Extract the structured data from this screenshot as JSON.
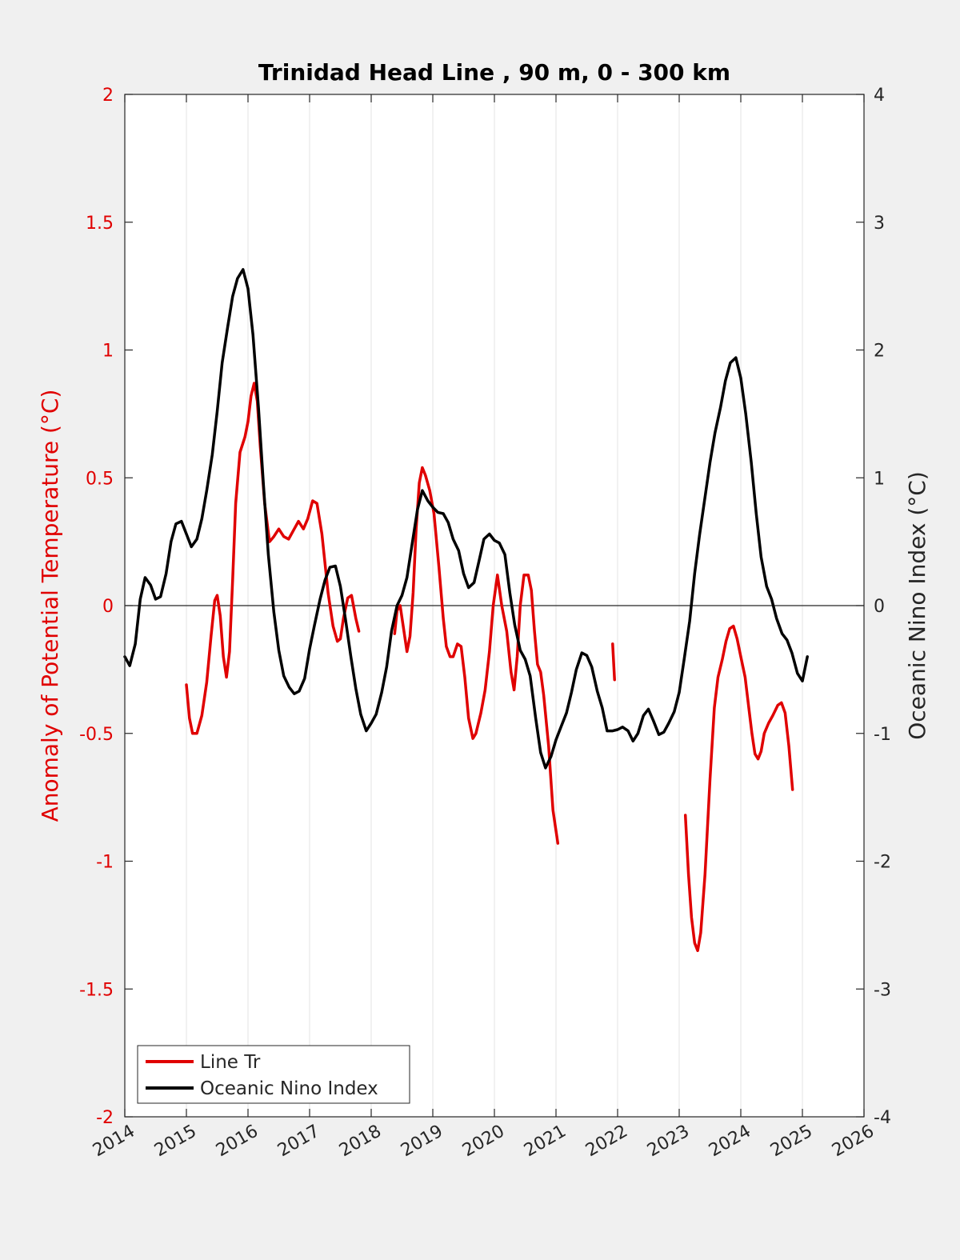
{
  "chart_data": {
    "type": "line",
    "title": "Trinidad Head Line , 90 m, 0 - 300 km",
    "ylabel_left": "Anomaly of Potential Temperature (°C)",
    "ylabel_right": "Oceanic Nino Index (°C)",
    "xlabel": "",
    "xlim": [
      2014,
      2026
    ],
    "ylim_left": [
      -2,
      2
    ],
    "ylim_right": [
      -4,
      4
    ],
    "x_ticks": [
      "2014",
      "2015",
      "2016",
      "2017",
      "2018",
      "2019",
      "2020",
      "2021",
      "2022",
      "2023",
      "2024",
      "2025",
      "2026"
    ],
    "y_left_ticks": [
      "2",
      "1.5",
      "1",
      "0.5",
      "0",
      "-0.5",
      "-1",
      "-1.5",
      "-2"
    ],
    "y_right_ticks": [
      "4",
      "3",
      "2",
      "1",
      "0",
      "-1",
      "-2",
      "-3",
      "-4"
    ],
    "grid": "vertical",
    "zero_line": true,
    "legend_position": "bottom-left",
    "colors": {
      "left_axis": "#e00000",
      "line_tr": "#e00000",
      "oni": "#000000"
    },
    "series": [
      {
        "name": "Line Tr",
        "axis": "left",
        "color": "#e00000",
        "segments": [
          [
            [
              2015.0,
              -0.31
            ],
            [
              2015.05,
              -0.44
            ],
            [
              2015.1,
              -0.5
            ],
            [
              2015.17,
              -0.5
            ],
            [
              2015.25,
              -0.43
            ],
            [
              2015.33,
              -0.3
            ],
            [
              2015.4,
              -0.12
            ],
            [
              2015.46,
              0.02
            ],
            [
              2015.5,
              0.04
            ],
            [
              2015.55,
              -0.04
            ],
            [
              2015.6,
              -0.2
            ],
            [
              2015.65,
              -0.28
            ],
            [
              2015.7,
              -0.18
            ],
            [
              2015.75,
              0.1
            ],
            [
              2015.8,
              0.4
            ],
            [
              2015.87,
              0.6
            ],
            [
              2015.95,
              0.66
            ],
            [
              2016.0,
              0.72
            ],
            [
              2016.05,
              0.82
            ],
            [
              2016.1,
              0.87
            ],
            [
              2016.15,
              0.8
            ],
            [
              2016.2,
              0.62
            ],
            [
              2016.27,
              0.4
            ],
            [
              2016.35,
              0.25
            ],
            [
              2016.42,
              0.27
            ],
            [
              2016.5,
              0.3
            ],
            [
              2016.58,
              0.27
            ],
            [
              2016.66,
              0.26
            ],
            [
              2016.75,
              0.3
            ],
            [
              2016.82,
              0.33
            ],
            [
              2016.9,
              0.3
            ],
            [
              2016.97,
              0.34
            ],
            [
              2017.05,
              0.41
            ],
            [
              2017.12,
              0.4
            ],
            [
              2017.2,
              0.28
            ],
            [
              2017.3,
              0.05
            ],
            [
              2017.38,
              -0.08
            ],
            [
              2017.45,
              -0.14
            ],
            [
              2017.5,
              -0.13
            ],
            [
              2017.55,
              -0.05
            ],
            [
              2017.62,
              0.03
            ],
            [
              2017.68,
              0.04
            ],
            [
              2017.75,
              -0.05
            ],
            [
              2017.8,
              -0.1
            ]
          ],
          [
            [
              2018.38,
              -0.11
            ],
            [
              2018.42,
              -0.02
            ],
            [
              2018.47,
              0.0
            ],
            [
              2018.52,
              -0.08
            ],
            [
              2018.58,
              -0.18
            ],
            [
              2018.63,
              -0.12
            ],
            [
              2018.68,
              0.05
            ],
            [
              2018.73,
              0.3
            ],
            [
              2018.78,
              0.48
            ],
            [
              2018.83,
              0.54
            ],
            [
              2018.88,
              0.51
            ],
            [
              2018.95,
              0.45
            ],
            [
              2019.02,
              0.36
            ],
            [
              2019.1,
              0.15
            ],
            [
              2019.17,
              -0.05
            ],
            [
              2019.22,
              -0.16
            ],
            [
              2019.28,
              -0.2
            ],
            [
              2019.33,
              -0.2
            ],
            [
              2019.4,
              -0.15
            ],
            [
              2019.46,
              -0.16
            ],
            [
              2019.52,
              -0.28
            ],
            [
              2019.58,
              -0.44
            ],
            [
              2019.65,
              -0.52
            ],
            [
              2019.7,
              -0.5
            ],
            [
              2019.78,
              -0.42
            ],
            [
              2019.85,
              -0.33
            ],
            [
              2019.92,
              -0.18
            ],
            [
              2019.98,
              0.0
            ],
            [
              2020.05,
              0.12
            ],
            [
              2020.12,
              0.0
            ],
            [
              2020.2,
              -0.1
            ],
            [
              2020.27,
              -0.26
            ],
            [
              2020.32,
              -0.33
            ],
            [
              2020.37,
              -0.2
            ],
            [
              2020.42,
              0.0
            ],
            [
              2020.48,
              0.12
            ],
            [
              2020.55,
              0.12
            ],
            [
              2020.6,
              0.06
            ],
            [
              2020.65,
              -0.1
            ],
            [
              2020.7,
              -0.23
            ],
            [
              2020.75,
              -0.26
            ],
            [
              2020.8,
              -0.35
            ],
            [
              2020.88,
              -0.55
            ],
            [
              2020.95,
              -0.8
            ],
            [
              2021.03,
              -0.93
            ]
          ],
          [
            [
              2021.92,
              -0.15
            ],
            [
              2021.95,
              -0.29
            ]
          ],
          [
            [
              2023.1,
              -0.82
            ],
            [
              2023.15,
              -1.05
            ],
            [
              2023.2,
              -1.22
            ],
            [
              2023.25,
              -1.32
            ],
            [
              2023.3,
              -1.35
            ],
            [
              2023.35,
              -1.28
            ],
            [
              2023.42,
              -1.05
            ],
            [
              2023.5,
              -0.68
            ],
            [
              2023.57,
              -0.4
            ],
            [
              2023.63,
              -0.28
            ],
            [
              2023.7,
              -0.21
            ],
            [
              2023.76,
              -0.14
            ],
            [
              2023.82,
              -0.09
            ],
            [
              2023.88,
              -0.08
            ],
            [
              2023.94,
              -0.13
            ],
            [
              2024.0,
              -0.2
            ],
            [
              2024.07,
              -0.28
            ],
            [
              2024.13,
              -0.4
            ],
            [
              2024.18,
              -0.5
            ],
            [
              2024.23,
              -0.58
            ],
            [
              2024.28,
              -0.6
            ],
            [
              2024.33,
              -0.57
            ],
            [
              2024.38,
              -0.5
            ],
            [
              2024.45,
              -0.46
            ],
            [
              2024.52,
              -0.43
            ],
            [
              2024.6,
              -0.39
            ],
            [
              2024.66,
              -0.38
            ],
            [
              2024.72,
              -0.42
            ],
            [
              2024.78,
              -0.55
            ],
            [
              2024.84,
              -0.72
            ]
          ]
        ]
      },
      {
        "name": "Oceanic Nino Index",
        "axis": "right",
        "color": "#000000",
        "segments": [
          [
            [
              2014.0,
              -0.4
            ],
            [
              2014.08,
              -0.47
            ],
            [
              2014.17,
              -0.3
            ],
            [
              2014.25,
              0.05
            ],
            [
              2014.33,
              0.22
            ],
            [
              2014.42,
              0.16
            ],
            [
              2014.5,
              0.05
            ],
            [
              2014.58,
              0.07
            ],
            [
              2014.67,
              0.25
            ],
            [
              2014.75,
              0.5
            ],
            [
              2014.83,
              0.64
            ],
            [
              2014.92,
              0.66
            ],
            [
              2015.0,
              0.56
            ],
            [
              2015.08,
              0.46
            ],
            [
              2015.17,
              0.52
            ],
            [
              2015.25,
              0.68
            ],
            [
              2015.33,
              0.9
            ],
            [
              2015.42,
              1.18
            ],
            [
              2015.5,
              1.52
            ],
            [
              2015.58,
              1.9
            ],
            [
              2015.67,
              2.18
            ],
            [
              2015.75,
              2.42
            ],
            [
              2015.83,
              2.56
            ],
            [
              2015.92,
              2.63
            ],
            [
              2016.0,
              2.48
            ],
            [
              2016.08,
              2.12
            ],
            [
              2016.17,
              1.55
            ],
            [
              2016.25,
              0.95
            ],
            [
              2016.33,
              0.4
            ],
            [
              2016.42,
              -0.05
            ],
            [
              2016.5,
              -0.35
            ],
            [
              2016.58,
              -0.55
            ],
            [
              2016.67,
              -0.64
            ],
            [
              2016.75,
              -0.69
            ],
            [
              2016.83,
              -0.67
            ],
            [
              2016.92,
              -0.57
            ],
            [
              2017.0,
              -0.34
            ],
            [
              2017.08,
              -0.15
            ],
            [
              2017.17,
              0.05
            ],
            [
              2017.25,
              0.2
            ],
            [
              2017.33,
              0.3
            ],
            [
              2017.42,
              0.31
            ],
            [
              2017.5,
              0.15
            ],
            [
              2017.58,
              -0.1
            ],
            [
              2017.67,
              -0.4
            ],
            [
              2017.75,
              -0.65
            ],
            [
              2017.83,
              -0.85
            ],
            [
              2017.92,
              -0.98
            ],
            [
              2018.0,
              -0.92
            ],
            [
              2018.08,
              -0.85
            ],
            [
              2018.17,
              -0.68
            ],
            [
              2018.25,
              -0.48
            ],
            [
              2018.33,
              -0.2
            ],
            [
              2018.42,
              0.0
            ],
            [
              2018.5,
              0.08
            ],
            [
              2018.58,
              0.22
            ],
            [
              2018.67,
              0.5
            ],
            [
              2018.75,
              0.75
            ],
            [
              2018.83,
              0.9
            ],
            [
              2018.92,
              0.82
            ],
            [
              2019.0,
              0.77
            ],
            [
              2019.08,
              0.73
            ],
            [
              2019.17,
              0.72
            ],
            [
              2019.25,
              0.65
            ],
            [
              2019.33,
              0.52
            ],
            [
              2019.42,
              0.43
            ],
            [
              2019.5,
              0.25
            ],
            [
              2019.58,
              0.14
            ],
            [
              2019.67,
              0.18
            ],
            [
              2019.75,
              0.35
            ],
            [
              2019.83,
              0.52
            ],
            [
              2019.92,
              0.56
            ],
            [
              2020.0,
              0.51
            ],
            [
              2020.08,
              0.49
            ],
            [
              2020.17,
              0.4
            ],
            [
              2020.25,
              0.1
            ],
            [
              2020.33,
              -0.15
            ],
            [
              2020.42,
              -0.35
            ],
            [
              2020.5,
              -0.42
            ],
            [
              2020.58,
              -0.55
            ],
            [
              2020.67,
              -0.88
            ],
            [
              2020.75,
              -1.15
            ],
            [
              2020.83,
              -1.27
            ],
            [
              2020.92,
              -1.18
            ],
            [
              2021.0,
              -1.05
            ],
            [
              2021.08,
              -0.95
            ],
            [
              2021.17,
              -0.84
            ],
            [
              2021.25,
              -0.68
            ],
            [
              2021.33,
              -0.5
            ],
            [
              2021.42,
              -0.37
            ],
            [
              2021.5,
              -0.39
            ],
            [
              2021.58,
              -0.48
            ],
            [
              2021.67,
              -0.67
            ],
            [
              2021.75,
              -0.8
            ],
            [
              2021.83,
              -0.98
            ],
            [
              2021.92,
              -0.98
            ],
            [
              2022.0,
              -0.97
            ],
            [
              2022.08,
              -0.95
            ],
            [
              2022.17,
              -0.98
            ],
            [
              2022.25,
              -1.06
            ],
            [
              2022.33,
              -1.0
            ],
            [
              2022.42,
              -0.86
            ],
            [
              2022.5,
              -0.81
            ],
            [
              2022.58,
              -0.9
            ],
            [
              2022.67,
              -1.01
            ],
            [
              2022.75,
              -0.99
            ],
            [
              2022.83,
              -0.92
            ],
            [
              2022.92,
              -0.83
            ],
            [
              2023.0,
              -0.68
            ],
            [
              2023.08,
              -0.42
            ],
            [
              2023.17,
              -0.12
            ],
            [
              2023.25,
              0.25
            ],
            [
              2023.33,
              0.55
            ],
            [
              2023.42,
              0.85
            ],
            [
              2023.5,
              1.12
            ],
            [
              2023.58,
              1.35
            ],
            [
              2023.67,
              1.55
            ],
            [
              2023.75,
              1.76
            ],
            [
              2023.83,
              1.9
            ],
            [
              2023.92,
              1.94
            ],
            [
              2024.0,
              1.78
            ],
            [
              2024.08,
              1.5
            ],
            [
              2024.17,
              1.12
            ],
            [
              2024.25,
              0.72
            ],
            [
              2024.33,
              0.38
            ],
            [
              2024.42,
              0.15
            ],
            [
              2024.5,
              0.05
            ],
            [
              2024.58,
              -0.1
            ],
            [
              2024.67,
              -0.22
            ],
            [
              2024.75,
              -0.27
            ],
            [
              2024.83,
              -0.37
            ],
            [
              2024.92,
              -0.53
            ],
            [
              2025.0,
              -0.59
            ],
            [
              2025.08,
              -0.4
            ]
          ]
        ]
      }
    ],
    "legend": [
      "Line Tr",
      "Oceanic Nino Index"
    ]
  }
}
